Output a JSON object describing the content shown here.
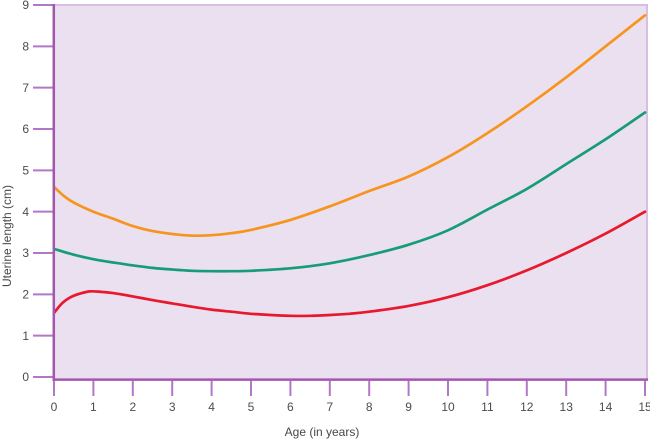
{
  "chart_data": {
    "type": "line",
    "title": "",
    "xlabel": "Age (in years)",
    "ylabel": "Uterine length (cm)",
    "xlim": [
      0,
      15
    ],
    "ylim": [
      0,
      9
    ],
    "x_ticks": [
      "0",
      "1",
      "2",
      "3",
      "4",
      "5",
      "6",
      "7",
      "8",
      "9",
      "10",
      "11",
      "12",
      "13",
      "14",
      "15"
    ],
    "y_ticks": [
      "0",
      "1",
      "2",
      "3",
      "4",
      "5",
      "6",
      "7",
      "8",
      "9"
    ],
    "grid": false,
    "legend_position": "none",
    "colors": {
      "plot_background": "#EAE0F0",
      "plot_border_light": "#D2B4DE",
      "axis_line": "#A257AE",
      "tick_mark": "#B277C6",
      "tick_text": "#4C4C4E"
    },
    "series": [
      {
        "name": "upper curve (orange)",
        "color": "#F7941E",
        "points": [
          [
            0,
            4.6
          ],
          [
            0.25,
            4.38
          ],
          [
            0.5,
            4.22
          ],
          [
            1,
            4.0
          ],
          [
            1.5,
            3.83
          ],
          [
            2,
            3.65
          ],
          [
            2.5,
            3.53
          ],
          [
            3,
            3.46
          ],
          [
            3.5,
            3.42
          ],
          [
            4,
            3.43
          ],
          [
            4.5,
            3.48
          ],
          [
            5,
            3.56
          ],
          [
            6,
            3.8
          ],
          [
            7,
            4.13
          ],
          [
            8,
            4.5
          ],
          [
            9,
            4.85
          ],
          [
            10,
            5.32
          ],
          [
            11,
            5.9
          ],
          [
            12,
            6.55
          ],
          [
            13,
            7.25
          ],
          [
            14,
            8.0
          ],
          [
            15,
            8.75
          ]
        ]
      },
      {
        "name": "middle curve (teal)",
        "color": "#179C78",
        "points": [
          [
            0,
            3.1
          ],
          [
            0.5,
            2.96
          ],
          [
            1,
            2.85
          ],
          [
            1.5,
            2.77
          ],
          [
            2,
            2.7
          ],
          [
            2.5,
            2.64
          ],
          [
            3,
            2.6
          ],
          [
            3.5,
            2.57
          ],
          [
            4,
            2.56
          ],
          [
            4.5,
            2.56
          ],
          [
            5,
            2.57
          ],
          [
            6,
            2.63
          ],
          [
            7,
            2.75
          ],
          [
            8,
            2.95
          ],
          [
            9,
            3.2
          ],
          [
            10,
            3.55
          ],
          [
            11,
            4.05
          ],
          [
            12,
            4.55
          ],
          [
            13,
            5.15
          ],
          [
            14,
            5.75
          ],
          [
            15,
            6.4
          ]
        ]
      },
      {
        "name": "lower curve (red)",
        "color": "#E8192C",
        "points": [
          [
            0,
            1.55
          ],
          [
            0.2,
            1.78
          ],
          [
            0.4,
            1.92
          ],
          [
            0.6,
            2.0
          ],
          [
            0.9,
            2.07
          ],
          [
            1.2,
            2.06
          ],
          [
            1.5,
            2.03
          ],
          [
            2,
            1.95
          ],
          [
            2.5,
            1.86
          ],
          [
            3,
            1.78
          ],
          [
            3.5,
            1.7
          ],
          [
            4,
            1.63
          ],
          [
            4.5,
            1.58
          ],
          [
            5,
            1.53
          ],
          [
            5.5,
            1.5
          ],
          [
            6,
            1.48
          ],
          [
            6.5,
            1.48
          ],
          [
            7,
            1.5
          ],
          [
            7.5,
            1.53
          ],
          [
            8,
            1.58
          ],
          [
            9,
            1.72
          ],
          [
            10,
            1.93
          ],
          [
            11,
            2.22
          ],
          [
            12,
            2.58
          ],
          [
            13,
            3.0
          ],
          [
            14,
            3.47
          ],
          [
            15,
            4.0
          ]
        ]
      }
    ]
  }
}
